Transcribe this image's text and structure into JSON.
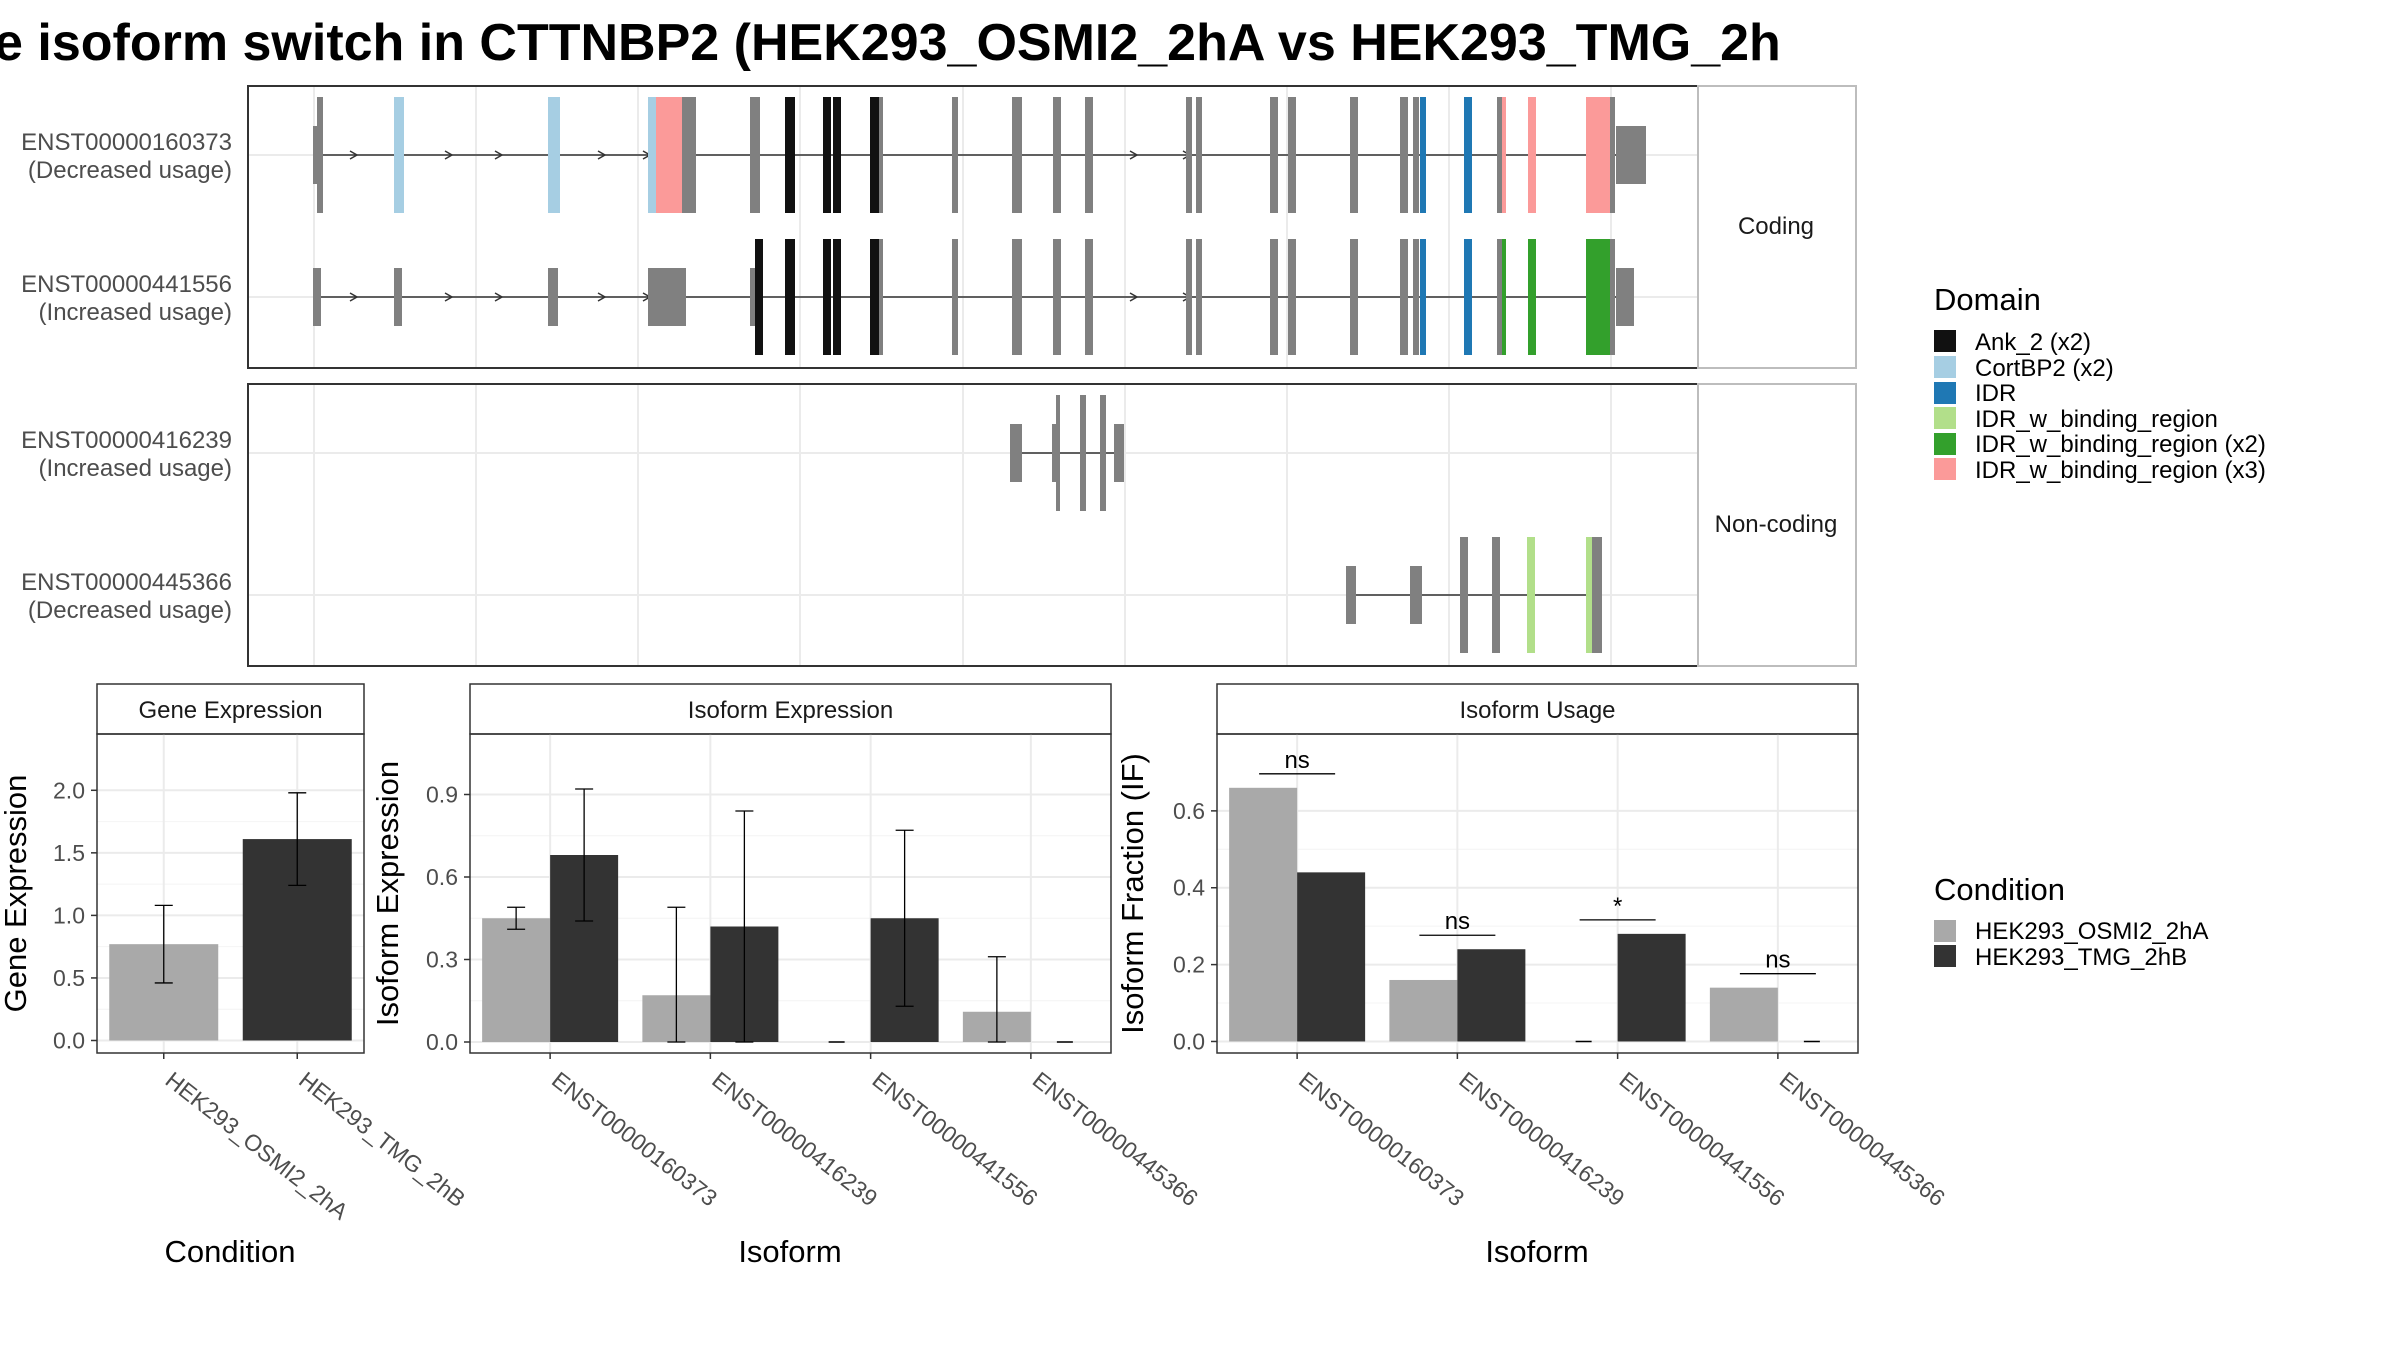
{
  "title": "e isoform switch in CTTNBP2 (HEK293_OSMI2_2hA vs HEK293_TMG_2h",
  "colors": {
    "exon": "#808080",
    "Ank_2 (x2)": "#111111",
    "CortBP2 (x2)": "#a6cee3",
    "IDR": "#1f78b4",
    "IDR_w_binding_region": "#b2df8a",
    "IDR_w_binding_region (x2)": "#33a02c",
    "IDR_w_binding_region (x3)": "#fb9a99",
    "condA": "#a9a9a9",
    "condB": "#333333"
  },
  "transcript_panel": {
    "facets": [
      "Coding",
      "Non-coding"
    ],
    "transcripts": [
      {
        "id": "ENST00000160373",
        "note": "(Decreased usage)",
        "facet": "Coding"
      },
      {
        "id": "ENST00000441556",
        "note": "(Increased usage)",
        "facet": "Coding"
      },
      {
        "id": "ENST00000416239",
        "note": "(Increased usage)",
        "facet": "Non-coding"
      },
      {
        "id": "ENST00000445366",
        "note": "(Decreased usage)",
        "facet": "Non-coding"
      }
    ]
  },
  "legend_domain": {
    "title": "Domain",
    "items": [
      "Ank_2 (x2)",
      "CortBP2 (x2)",
      "IDR",
      "IDR_w_binding_region",
      "IDR_w_binding_region (x2)",
      "IDR_w_binding_region (x3)"
    ]
  },
  "legend_condition": {
    "title": "Condition",
    "items": [
      "HEK293_OSMI2_2hA",
      "HEK293_TMG_2hB"
    ]
  },
  "chart_data": [
    {
      "type": "bar",
      "title": "Gene Expression",
      "xlabel": "Condition",
      "ylabel": "Gene Expression",
      "categories": [
        "HEK293_OSMI2_2hA",
        "HEK293_TMG_2hB"
      ],
      "values": [
        0.77,
        1.61
      ],
      "error_low": [
        0.46,
        1.24
      ],
      "error_high": [
        1.08,
        1.98
      ],
      "ylim": [
        -0.1,
        2.45
      ],
      "yticks": [
        0.0,
        0.5,
        1.0,
        1.5,
        2.0
      ],
      "ytick_labels": [
        "0.0",
        "0.5",
        "1.0",
        "1.5",
        "2.0"
      ]
    },
    {
      "type": "bar",
      "title": "Isoform Expression",
      "xlabel": "Isoform",
      "ylabel": "Isoform Expression",
      "categories": [
        "ENST00000160373",
        "ENST00000416239",
        "ENST00000441556",
        "ENST00000445366"
      ],
      "series": [
        {
          "name": "HEK293_OSMI2_2hA",
          "values": [
            0.45,
            0.17,
            0.0,
            0.11
          ],
          "error_low": [
            0.41,
            0.0,
            null,
            0.0
          ],
          "error_high": [
            0.49,
            0.49,
            null,
            0.31
          ]
        },
        {
          "name": "HEK293_TMG_2hB",
          "values": [
            0.68,
            0.42,
            0.45,
            0.0
          ],
          "error_low": [
            0.44,
            0.0,
            0.13,
            null
          ],
          "error_high": [
            0.92,
            0.84,
            0.77,
            null
          ]
        }
      ],
      "ylim": [
        -0.04,
        1.12
      ],
      "yticks": [
        0.0,
        0.3,
        0.6,
        0.9
      ],
      "ytick_labels": [
        "0.0",
        "0.3",
        "0.6",
        "0.9"
      ]
    },
    {
      "type": "bar",
      "title": "Isoform Usage",
      "xlabel": "Isoform",
      "ylabel": "Isoform Fraction (IF)",
      "categories": [
        "ENST00000160373",
        "ENST00000416239",
        "ENST00000441556",
        "ENST00000445366"
      ],
      "series": [
        {
          "name": "HEK293_OSMI2_2hA",
          "values": [
            0.66,
            0.16,
            0.0,
            0.14
          ]
        },
        {
          "name": "HEK293_TMG_2hB",
          "values": [
            0.44,
            0.24,
            0.28,
            0.0
          ]
        }
      ],
      "significance": [
        "ns",
        "ns",
        "*",
        "ns"
      ],
      "ylim": [
        -0.03,
        0.8
      ],
      "yticks": [
        0.0,
        0.2,
        0.4,
        0.6
      ],
      "ytick_labels": [
        "0.0",
        "0.2",
        "0.4",
        "0.6"
      ]
    }
  ]
}
